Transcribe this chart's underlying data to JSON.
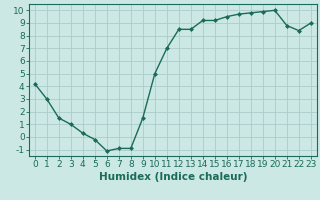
{
  "x": [
    0,
    1,
    2,
    3,
    4,
    5,
    6,
    7,
    8,
    9,
    10,
    11,
    12,
    13,
    14,
    15,
    16,
    17,
    18,
    19,
    20,
    21,
    22,
    23
  ],
  "y": [
    4.2,
    3.0,
    1.5,
    1.0,
    0.3,
    -0.2,
    -1.1,
    -0.9,
    -0.9,
    1.5,
    5.0,
    7.0,
    8.5,
    8.5,
    9.2,
    9.2,
    9.5,
    9.7,
    9.8,
    9.9,
    10.0,
    8.8,
    8.4,
    9.0
  ],
  "line_color": "#1a6b5a",
  "marker": "D",
  "marker_size": 2.0,
  "bg_color": "#cce8e4",
  "grid_color": "#aaccca",
  "xlabel": "Humidex (Indice chaleur)",
  "xlabel_fontsize": 7.5,
  "xlim": [
    -0.5,
    23.5
  ],
  "ylim": [
    -1.5,
    10.5
  ],
  "yticks": [
    -1,
    0,
    1,
    2,
    3,
    4,
    5,
    6,
    7,
    8,
    9,
    10
  ],
  "xticks": [
    0,
    1,
    2,
    3,
    4,
    5,
    6,
    7,
    8,
    9,
    10,
    11,
    12,
    13,
    14,
    15,
    16,
    17,
    18,
    19,
    20,
    21,
    22,
    23
  ],
  "tick_fontsize": 6.5,
  "line_width": 1.0
}
